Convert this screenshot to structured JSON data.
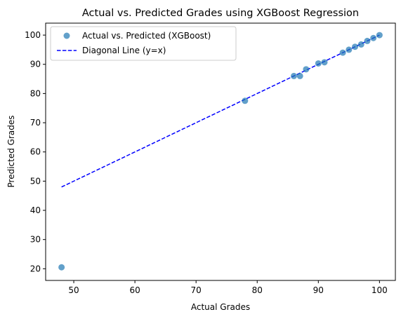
{
  "chart_data": {
    "type": "scatter",
    "title": "Actual vs. Predicted Grades using XGBoost Regression",
    "xlabel": "Actual Grades",
    "ylabel": "Predicted Grades",
    "xlim": [
      45.4,
      102.6
    ],
    "ylim": [
      16.0,
      104.1
    ],
    "xticks": [
      50,
      60,
      70,
      80,
      90,
      100
    ],
    "yticks": [
      20,
      30,
      40,
      50,
      60,
      70,
      80,
      90,
      100
    ],
    "grid": false,
    "legend_position": "upper-left",
    "series": [
      {
        "name": "Actual vs. Predicted (XGBoost)",
        "kind": "scatter",
        "color": "#1f77b4",
        "x": [
          48,
          78,
          86,
          87,
          88,
          90,
          91,
          94,
          95,
          96,
          97,
          98,
          99,
          100
        ],
        "y": [
          20.5,
          77.5,
          86,
          86,
          88.3,
          90.3,
          90.7,
          94,
          95,
          96,
          96.8,
          98,
          99,
          100
        ]
      },
      {
        "name": "Diagonal Line (y=x)",
        "kind": "line",
        "style": "dashed",
        "color": "#0000ff",
        "x": [
          48,
          100
        ],
        "y": [
          48,
          100
        ]
      }
    ]
  }
}
